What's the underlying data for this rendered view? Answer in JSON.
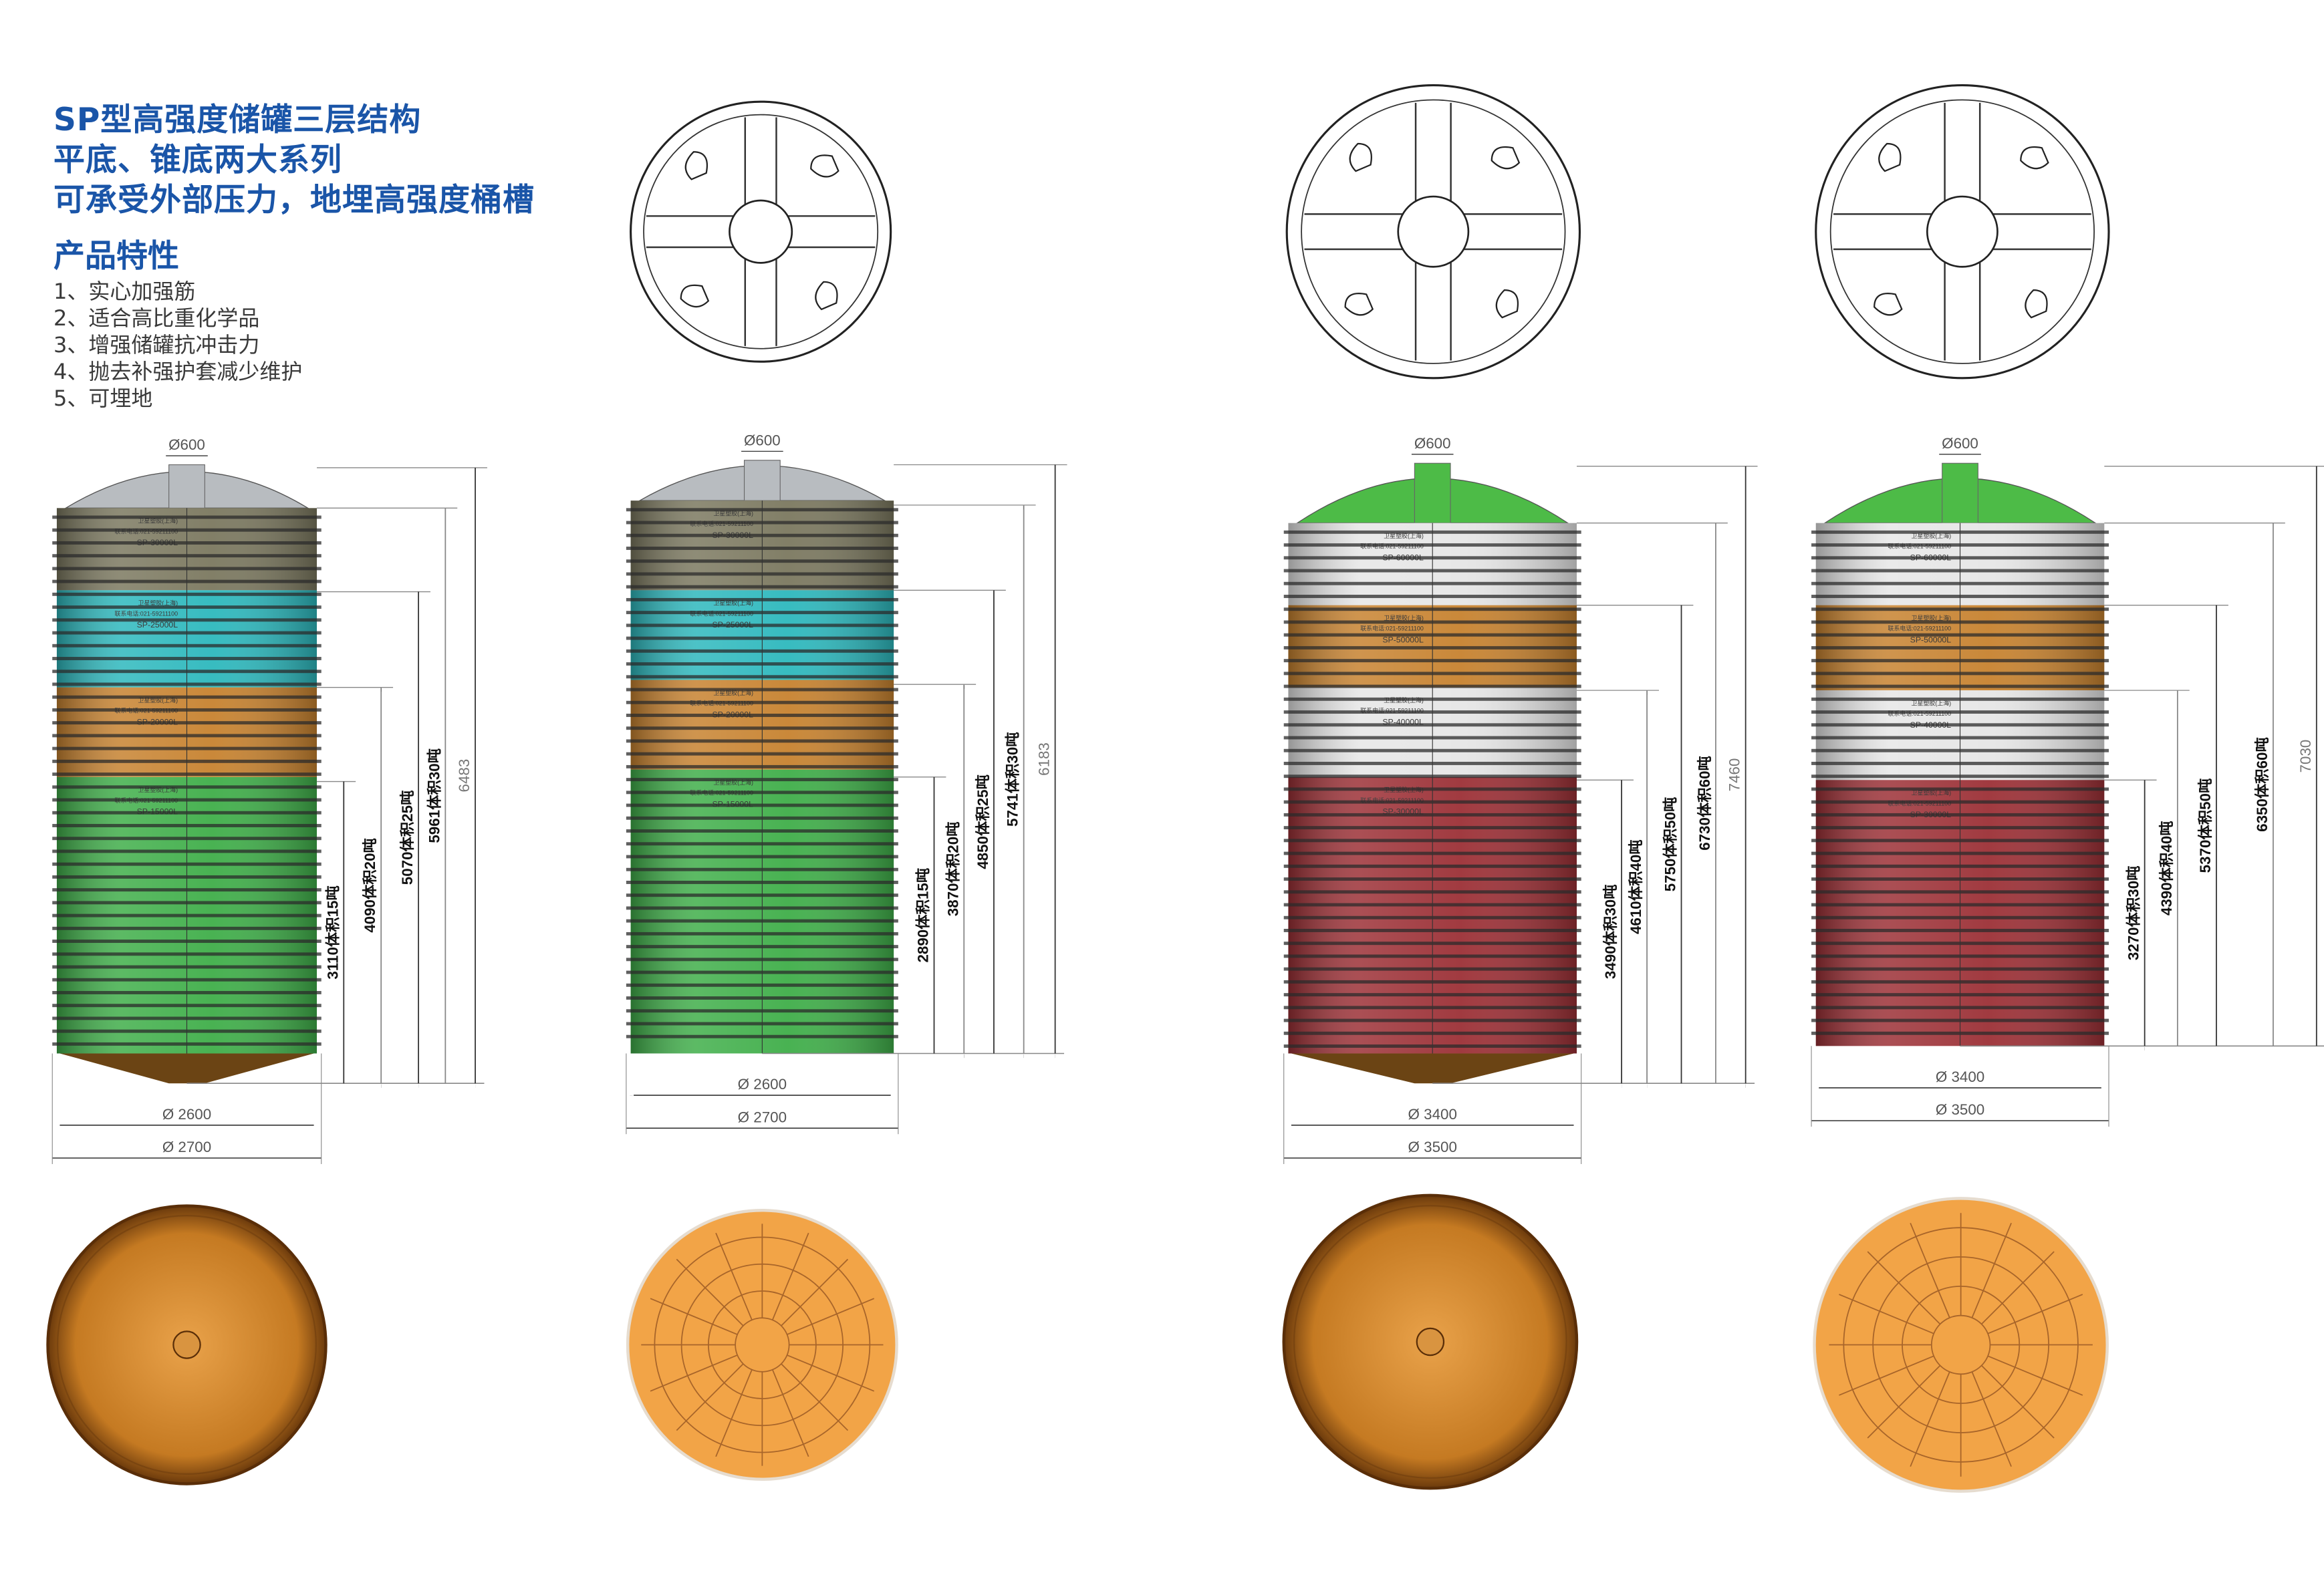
{
  "intro": {
    "title_lines": [
      "SP型高强度储罐三层结构",
      "平底、锥底两大系列",
      "可承受外部压力，地埋高强度桶槽"
    ],
    "features_heading": "产品特性",
    "features": [
      "1、实心加强筋",
      "2、适合高比重化学品",
      "3、增强储罐抗冲击力",
      "4、抛去补强护套减少维护",
      "5、可埋地"
    ]
  },
  "brand_label": "卫星塑胶(上海)",
  "phone_label": "联系电话:021-59211100",
  "colors": {
    "title": "#1a55a8",
    "olive": "#7b785f",
    "teal": "#2db8bd",
    "orange": "#c7822f",
    "green": "#3fae49",
    "silver": "#e6e6e6",
    "red": "#9c3036",
    "dome_grey": "#b8bcc0",
    "dome_green": "#4dbb47"
  },
  "tanks": [
    {
      "name": "SP conical-bottom 30t",
      "bottom": "cone",
      "manhole": "Ø600",
      "inner_diameter": "Ø  2600",
      "outer_diameter": "Ø  2700",
      "total_height": "6483",
      "levels": [
        "3110体积15吨",
        "4090体积20吨",
        "5070体积25吨",
        "5961体积30吨"
      ],
      "sections": [
        {
          "model": "SP-30000L",
          "color": "olive"
        },
        {
          "model": "SP-25000L",
          "color": "teal"
        },
        {
          "model": "SP-20000L",
          "color": "orange"
        },
        {
          "model": "SP-15000L",
          "color": "green"
        }
      ],
      "dome": "dome_grey",
      "base_view": "smooth"
    },
    {
      "name": "SP flat-bottom 30t",
      "bottom": "flat",
      "manhole": "Ø600",
      "inner_diameter": "Ø  2600",
      "outer_diameter": "Ø  2700",
      "total_height": "6183",
      "levels": [
        "2890体积15吨",
        "3870体积20吨",
        "4850体积25吨",
        "5741体积30吨"
      ],
      "sections": [
        {
          "model": "SP-30000L",
          "color": "olive"
        },
        {
          "model": "SP-25000L",
          "color": "teal"
        },
        {
          "model": "SP-20000L",
          "color": "orange"
        },
        {
          "model": "SP-15000L",
          "color": "green"
        }
      ],
      "dome": "dome_grey",
      "base_view": "ribbed"
    },
    {
      "name": "SP conical-bottom 60t",
      "bottom": "cone",
      "manhole": "Ø600",
      "inner_diameter": "Ø  3400",
      "outer_diameter": "Ø  3500",
      "total_height": "7460",
      "levels": [
        "3490体积30吨",
        "4610体积40吨",
        "5750体积50吨",
        "6730体积60吨"
      ],
      "sections": [
        {
          "model": "SP-60000L",
          "color": "silver"
        },
        {
          "model": "SP-50000L",
          "color": "orange"
        },
        {
          "model": "SP-40000L",
          "color": "silver"
        },
        {
          "model": "SP-30000L",
          "color": "red"
        }
      ],
      "dome": "dome_green",
      "base_view": "smooth"
    },
    {
      "name": "SP flat-bottom 60t",
      "bottom": "flat",
      "manhole": "Ø600",
      "inner_diameter": "Ø  3400",
      "outer_diameter": "Ø  3500",
      "total_height": "7030",
      "levels": [
        "3270体积30吨",
        "4390体积40吨",
        "5370体积50吨",
        "6350体积60吨"
      ],
      "sections": [
        {
          "model": "SP-60000L",
          "color": "silver"
        },
        {
          "model": "SP-50000L",
          "color": "orange"
        },
        {
          "model": "SP-40000L",
          "color": "silver"
        },
        {
          "model": "SP-30000L",
          "color": "red"
        }
      ],
      "dome": "dome_green",
      "base_view": "ribbed"
    }
  ]
}
